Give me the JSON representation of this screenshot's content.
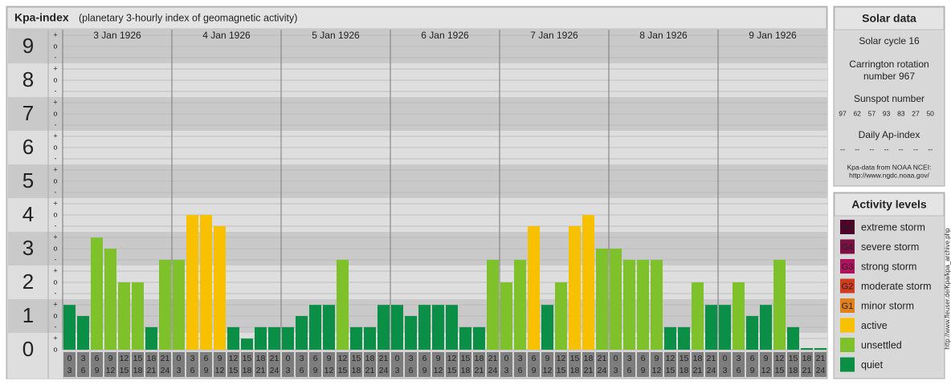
{
  "chart_data": {
    "type": "bar",
    "title": "Kpa-index",
    "subtitle": "(planetary 3-hourly index of geomagnetic activity)",
    "categories": [
      "3 Jan 1926",
      "4 Jan 1926",
      "5 Jan 1926",
      "6 Jan 1926",
      "7 Jan 1926",
      "8 Jan 1926",
      "9 Jan 1926"
    ],
    "hours": [
      [
        "0",
        "3"
      ],
      [
        "3",
        "6"
      ],
      [
        "6",
        "9"
      ],
      [
        "9",
        "12"
      ],
      [
        "12",
        "15"
      ],
      [
        "15",
        "18"
      ],
      [
        "18",
        "21"
      ],
      [
        "21",
        "24"
      ]
    ],
    "values": [
      [
        1.33,
        1,
        3.33,
        3,
        2,
        2,
        0.67,
        2.67
      ],
      [
        2.67,
        4,
        4,
        3.67,
        0.67,
        0.33,
        0.67,
        0.67
      ],
      [
        0.67,
        1,
        1.33,
        1.33,
        2.67,
        0.67,
        0.67,
        1.33
      ],
      [
        1.33,
        1,
        1.33,
        1.33,
        1.33,
        0.67,
        0.67,
        2.67
      ],
      [
        2,
        2.67,
        3.67,
        1.33,
        2,
        3.67,
        4,
        3
      ],
      [
        3,
        2.67,
        2.67,
        2.67,
        0.67,
        0.67,
        2,
        1.33
      ],
      [
        1.33,
        2,
        1,
        1.33,
        2.67,
        0.67,
        0,
        0
      ]
    ],
    "colors": [
      [
        "#0b8f46",
        "#0b8f46",
        "#7ec12a",
        "#7ec12a",
        "#7ec12a",
        "#7ec12a",
        "#0b8f46",
        "#7ec12a"
      ],
      [
        "#7ec12a",
        "#f7c100",
        "#f7c100",
        "#f7c100",
        "#0b8f46",
        "#0b8f46",
        "#0b8f46",
        "#0b8f46"
      ],
      [
        "#0b8f46",
        "#0b8f46",
        "#0b8f46",
        "#0b8f46",
        "#7ec12a",
        "#0b8f46",
        "#0b8f46",
        "#0b8f46"
      ],
      [
        "#0b8f46",
        "#0b8f46",
        "#0b8f46",
        "#0b8f46",
        "#0b8f46",
        "#0b8f46",
        "#0b8f46",
        "#7ec12a"
      ],
      [
        "#7ec12a",
        "#7ec12a",
        "#f7c100",
        "#0b8f46",
        "#7ec12a",
        "#f7c100",
        "#f7c100",
        "#7ec12a"
      ],
      [
        "#7ec12a",
        "#7ec12a",
        "#7ec12a",
        "#7ec12a",
        "#0b8f46",
        "#0b8f46",
        "#7ec12a",
        "#0b8f46"
      ],
      [
        "#0b8f46",
        "#7ec12a",
        "#0b8f46",
        "#0b8f46",
        "#7ec12a",
        "#0b8f46",
        "#0b8f46",
        "#0b8f46"
      ]
    ],
    "ylim": [
      0,
      9.5
    ],
    "yticks": [
      0,
      1,
      2,
      3,
      4,
      5,
      6,
      7,
      8,
      9
    ],
    "thirds": [
      "-",
      "o",
      "+"
    ],
    "grid": true
  },
  "solar_data": {
    "title": "Solar data",
    "cycle": "Solar cycle 16",
    "carrington": [
      "Carrington rotation",
      "number 967"
    ],
    "sunspot_title": "Sunspot number",
    "sunspots": [
      97,
      62,
      57,
      93,
      83,
      27,
      50
    ],
    "ap_title": "Daily Ap-index",
    "ap_values": [
      "--",
      "--",
      "--",
      "--",
      "--",
      "--",
      "--"
    ],
    "source": [
      "Kpa-data from NOAA NCEI:",
      "http://www.ngdc.noaa.gov/"
    ]
  },
  "activity_levels": {
    "title": "Activity levels",
    "items": [
      {
        "badge": "G5",
        "label": "extreme storm",
        "color": "#4f0028"
      },
      {
        "badge": "G4",
        "label": "severe storm",
        "color": "#7c1044"
      },
      {
        "badge": "G3",
        "label": "strong storm",
        "color": "#b0125e"
      },
      {
        "badge": "G2",
        "label": "moderate storm",
        "color": "#d03c20"
      },
      {
        "badge": "G1",
        "label": "minor storm",
        "color": "#e0801c"
      },
      {
        "label": "active",
        "color": "#f7c100"
      },
      {
        "label": "unsettled",
        "color": "#7ec12a"
      },
      {
        "label": "quiet",
        "color": "#0b8f46"
      }
    ]
  },
  "footer_url": "http://www.fleuser.de/Kpa/kpa_archive.php"
}
